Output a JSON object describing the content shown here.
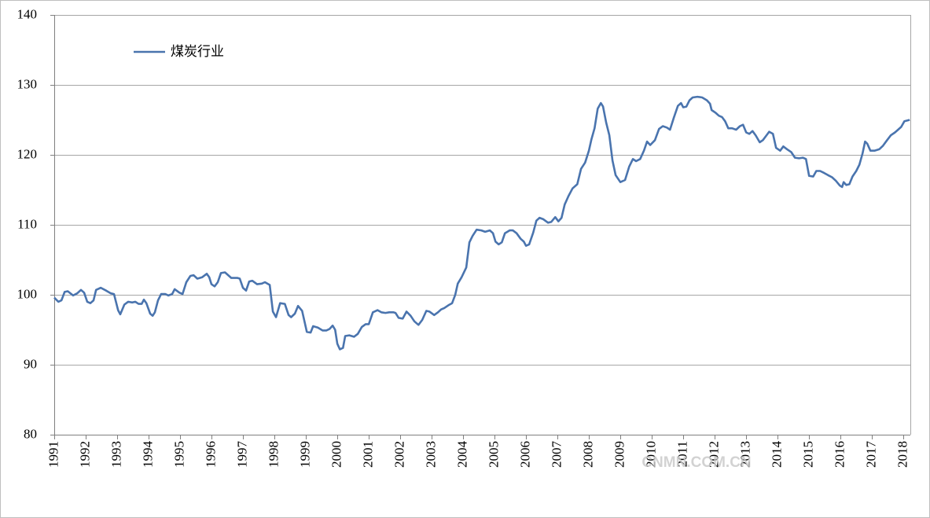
{
  "chart_data": {
    "type": "line",
    "series": [
      {
        "name": "煤炭行业",
        "color": "#4a74ae",
        "values": [
          99.6,
          99.0,
          99.2,
          100.4,
          100.5,
          99.9,
          100.2,
          100.7,
          100.3,
          99.0,
          98.8,
          99.2,
          100.7,
          101.0,
          100.6,
          100.2,
          100.1,
          97.8,
          97.2,
          98.6,
          99.0,
          98.9,
          99.0,
          98.7,
          98.7,
          99.3,
          98.8,
          97.3,
          97.0,
          97.5,
          99.2,
          100.1,
          100.1,
          99.9,
          100.1,
          100.8,
          100.3,
          100.1,
          101.8,
          102.7,
          102.8,
          102.3,
          102.5,
          103.0,
          102.5,
          101.5,
          101.2,
          101.8,
          103.1,
          103.2,
          102.4,
          102.4,
          102.3,
          101.0,
          100.6,
          101.9,
          102.0,
          101.5,
          101.6,
          101.8,
          101.4,
          97.6,
          96.8,
          98.8,
          98.7,
          97.1,
          96.8,
          97.3,
          98.4,
          97.7,
          94.7,
          94.6,
          95.5,
          95.3,
          94.9,
          94.9,
          95.1,
          95.6,
          95.0,
          93.0,
          92.2,
          92.4,
          94.1,
          94.2,
          94.0,
          94.4,
          95.4,
          95.8,
          95.8,
          97.5,
          97.8,
          97.5,
          97.4,
          97.5,
          97.5,
          97.4,
          96.7,
          96.6,
          97.6,
          97.0,
          96.2,
          95.7,
          96.4,
          97.7,
          97.6,
          97.1,
          97.5,
          97.9,
          98.1,
          98.5,
          98.8,
          100.0,
          101.6,
          102.5,
          103.9,
          107.5,
          108.4,
          109.3,
          109.2,
          109.0,
          109.2,
          108.8,
          107.6,
          107.2,
          107.5,
          108.8,
          109.2,
          109.2,
          108.8,
          108.0,
          107.6,
          107.0,
          107.2,
          108.9,
          110.6,
          111.0,
          110.8,
          110.3,
          110.4,
          111.1,
          110.5,
          111.0,
          112.9,
          114.1,
          115.2,
          115.8,
          118.0,
          118.9,
          120.6,
          122.2,
          123.8,
          126.6,
          127.4,
          126.9,
          124.6,
          122.8,
          119.2,
          117.1,
          116.1,
          116.4,
          118.3,
          119.4,
          119.1,
          119.4,
          120.6,
          121.9,
          121.4,
          122.1,
          123.7,
          124.1,
          123.9,
          123.6,
          125.3,
          127.0,
          127.4,
          126.8,
          126.9,
          127.8,
          128.2,
          128.3,
          128.2,
          127.8,
          127.3,
          126.4,
          126.0,
          125.6,
          125.4,
          124.8,
          123.8,
          123.8,
          123.6,
          124.1,
          124.3,
          123.2,
          123.0,
          123.4,
          122.8,
          121.8,
          122.1,
          122.7,
          123.3,
          123.0,
          121.0,
          120.6,
          121.2,
          120.8,
          120.4,
          119.6,
          119.5,
          119.6,
          119.4,
          117.0,
          116.9,
          117.7,
          117.7,
          117.4,
          117.1,
          116.8,
          116.3,
          115.6,
          115.4,
          116.1,
          115.7,
          115.8,
          116.9,
          117.7,
          118.6,
          120.2,
          121.9,
          121.6,
          120.6,
          120.6,
          120.8,
          121.3,
          122.1,
          122.8,
          123.2,
          123.6,
          124.0,
          124.8,
          125.0
        ]
      }
    ],
    "x": [
      1991.0,
      1991.13,
      1991.23,
      1991.33,
      1991.43,
      1991.6,
      1991.73,
      1991.85,
      1991.95,
      1992.05,
      1992.15,
      1992.25,
      1992.33,
      1992.48,
      1992.65,
      1992.8,
      1992.9,
      1993.03,
      1993.1,
      1993.23,
      1993.35,
      1993.48,
      1993.58,
      1993.68,
      1993.78,
      1993.85,
      1993.93,
      1994.05,
      1994.13,
      1994.2,
      1994.3,
      1994.4,
      1994.53,
      1994.63,
      1994.75,
      1994.83,
      1994.98,
      1995.08,
      1995.2,
      1995.33,
      1995.43,
      1995.55,
      1995.7,
      1995.85,
      1995.93,
      1996.0,
      1996.1,
      1996.2,
      1996.3,
      1996.43,
      1996.63,
      1996.83,
      1996.9,
      1997.0,
      1997.1,
      1997.2,
      1997.3,
      1997.45,
      1997.6,
      1997.7,
      1997.85,
      1997.95,
      1998.05,
      1998.18,
      1998.33,
      1998.45,
      1998.53,
      1998.65,
      1998.75,
      1998.88,
      1999.03,
      1999.15,
      1999.23,
      1999.38,
      1999.53,
      1999.65,
      1999.75,
      1999.85,
      1999.93,
      2000.0,
      2000.08,
      2000.18,
      2000.25,
      2000.38,
      2000.53,
      2000.65,
      2000.78,
      2000.9,
      2001.0,
      2001.13,
      2001.28,
      2001.4,
      2001.53,
      2001.65,
      2001.78,
      2001.85,
      2001.95,
      2002.08,
      2002.2,
      2002.33,
      2002.45,
      2002.58,
      2002.7,
      2002.83,
      2002.93,
      2003.08,
      2003.2,
      2003.3,
      2003.4,
      2003.53,
      2003.65,
      2003.75,
      2003.83,
      2003.95,
      2004.1,
      2004.2,
      2004.3,
      2004.43,
      2004.58,
      2004.7,
      2004.85,
      2004.95,
      2005.03,
      2005.13,
      2005.23,
      2005.33,
      2005.48,
      2005.58,
      2005.7,
      2005.83,
      2005.93,
      2006.0,
      2006.1,
      2006.23,
      2006.33,
      2006.43,
      2006.55,
      2006.7,
      2006.8,
      2006.93,
      2007.03,
      2007.13,
      2007.23,
      2007.35,
      2007.48,
      2007.63,
      2007.75,
      2007.88,
      2008.0,
      2008.08,
      2008.18,
      2008.28,
      2008.38,
      2008.45,
      2008.55,
      2008.65,
      2008.75,
      2008.85,
      2009.0,
      2009.15,
      2009.28,
      2009.4,
      2009.5,
      2009.63,
      2009.75,
      2009.85,
      2009.95,
      2010.1,
      2010.23,
      2010.35,
      2010.48,
      2010.58,
      2010.7,
      2010.83,
      2010.93,
      2011.0,
      2011.1,
      2011.2,
      2011.3,
      2011.45,
      2011.6,
      2011.75,
      2011.85,
      2011.9,
      2012.03,
      2012.13,
      2012.23,
      2012.33,
      2012.43,
      2012.55,
      2012.68,
      2012.8,
      2012.9,
      2013.0,
      2013.1,
      2013.2,
      2013.3,
      2013.43,
      2013.53,
      2013.63,
      2013.73,
      2013.85,
      2013.95,
      2014.08,
      2014.18,
      2014.3,
      2014.43,
      2014.55,
      2014.68,
      2014.8,
      2014.9,
      2015.0,
      2015.13,
      2015.23,
      2015.35,
      2015.48,
      2015.6,
      2015.73,
      2015.85,
      2015.98,
      2016.05,
      2016.1,
      2016.18,
      2016.28,
      2016.38,
      2016.5,
      2016.6,
      2016.7,
      2016.78,
      2016.85,
      2016.95,
      2017.08,
      2017.23,
      2017.35,
      2017.48,
      2017.6,
      2017.73,
      2017.83,
      2017.93,
      2018.03,
      2018.2
    ],
    "xlim": [
      1991,
      2018.22
    ],
    "xticks": [
      1991,
      1992,
      1993,
      1994,
      1995,
      1996,
      1997,
      1998,
      1999,
      2000,
      2001,
      2002,
      2003,
      2004,
      2005,
      2006,
      2007,
      2008,
      2009,
      2010,
      2011,
      2012,
      2013,
      2014,
      2015,
      2016,
      2017,
      2018
    ],
    "ylim": [
      80,
      140
    ],
    "yticks": [
      80,
      90,
      100,
      110,
      120,
      130,
      140
    ],
    "grid": true,
    "legend": "upper-left",
    "watermark": "CNMN.COM.CN"
  }
}
